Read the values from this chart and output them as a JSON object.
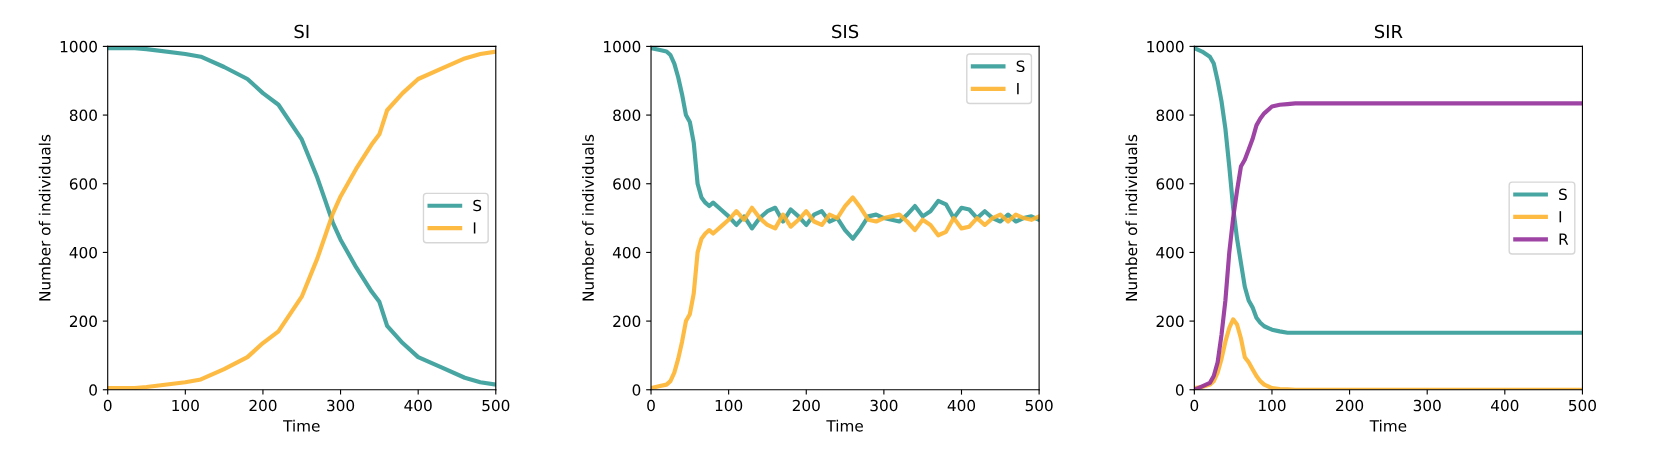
{
  "chart_data": [
    {
      "type": "line",
      "title": "SI",
      "xlabel": "Time",
      "ylabel": "Number of individuals",
      "xlim": [
        0,
        500
      ],
      "ylim": [
        0,
        1000
      ],
      "xticks": [
        0,
        100,
        200,
        300,
        400,
        500
      ],
      "yticks": [
        0,
        200,
        400,
        600,
        800,
        1000
      ],
      "legend": "right",
      "grid": false,
      "marker": "none",
      "line_style": "solid",
      "x": [
        0,
        35,
        50,
        100,
        120,
        150,
        180,
        200,
        220,
        250,
        270,
        280,
        290,
        300,
        320,
        340,
        350,
        360,
        380,
        400,
        430,
        460,
        480,
        500
      ],
      "series": [
        {
          "name": "S",
          "color": "#339b98",
          "values": [
            995,
            995,
            992,
            978,
            970,
            940,
            905,
            864,
            830,
            729,
            618,
            553,
            487,
            437,
            357,
            286,
            256,
            186,
            136,
            95,
            65,
            35,
            22,
            15
          ]
        },
        {
          "name": "I",
          "color": "#fdb42f",
          "values": [
            5,
            5,
            8,
            22,
            30,
            60,
            95,
            136,
            170,
            271,
            382,
            447,
            513,
            563,
            643,
            714,
            744,
            814,
            864,
            905,
            935,
            965,
            978,
            985
          ]
        }
      ]
    },
    {
      "type": "line",
      "title": "SIS",
      "xlabel": "Time",
      "ylabel": "Number of individuals",
      "xlim": [
        0,
        500
      ],
      "ylim": [
        0,
        1000
      ],
      "xticks": [
        0,
        100,
        200,
        300,
        400,
        500
      ],
      "yticks": [
        0,
        200,
        400,
        600,
        800,
        1000
      ],
      "legend": "top right",
      "grid": false,
      "marker": "none",
      "line_style": "solid",
      "x": [
        0,
        10,
        20,
        25,
        30,
        35,
        40,
        45,
        50,
        55,
        60,
        65,
        70,
        75,
        80,
        90,
        100,
        110,
        120,
        130,
        140,
        150,
        160,
        170,
        180,
        190,
        200,
        210,
        220,
        230,
        240,
        250,
        260,
        270,
        280,
        290,
        300,
        310,
        320,
        330,
        340,
        350,
        360,
        370,
        380,
        390,
        400,
        410,
        420,
        430,
        440,
        450,
        460,
        470,
        480,
        490,
        500
      ],
      "series": [
        {
          "name": "S",
          "color": "#339b98",
          "values": [
            995,
            990,
            985,
            975,
            950,
            910,
            860,
            800,
            780,
            720,
            600,
            560,
            545,
            535,
            545,
            525,
            505,
            480,
            505,
            470,
            500,
            520,
            530,
            490,
            525,
            505,
            480,
            510,
            520,
            490,
            500,
            465,
            440,
            470,
            505,
            510,
            500,
            495,
            490,
            510,
            535,
            505,
            520,
            550,
            540,
            500,
            530,
            525,
            500,
            520,
            500,
            490,
            510,
            490,
            500,
            505,
            495
          ]
        },
        {
          "name": "I",
          "color": "#fdb42f",
          "values": [
            5,
            10,
            15,
            25,
            50,
            90,
            140,
            200,
            220,
            280,
            400,
            440,
            455,
            465,
            455,
            475,
            495,
            520,
            495,
            530,
            500,
            480,
            470,
            510,
            475,
            495,
            520,
            490,
            480,
            510,
            500,
            535,
            560,
            530,
            495,
            490,
            500,
            505,
            510,
            490,
            465,
            495,
            480,
            450,
            460,
            500,
            470,
            475,
            500,
            480,
            500,
            510,
            490,
            510,
            500,
            495,
            505
          ]
        }
      ]
    },
    {
      "type": "line",
      "title": "SIR",
      "xlabel": "Time",
      "ylabel": "Number of individuals",
      "xlim": [
        0,
        500
      ],
      "ylim": [
        0,
        1000
      ],
      "xticks": [
        0,
        100,
        200,
        300,
        400,
        500
      ],
      "yticks": [
        0,
        200,
        400,
        600,
        800,
        1000
      ],
      "legend": "right",
      "grid": false,
      "marker": "none",
      "line_style": "solid",
      "x": [
        0,
        10,
        20,
        25,
        30,
        35,
        40,
        45,
        50,
        55,
        60,
        65,
        70,
        75,
        80,
        85,
        90,
        100,
        110,
        120,
        130,
        150,
        200,
        300,
        400,
        500
      ],
      "series": [
        {
          "name": "S",
          "color": "#339b98",
          "values": [
            995,
            985,
            970,
            950,
            900,
            840,
            760,
            650,
            530,
            440,
            370,
            300,
            260,
            240,
            210,
            195,
            185,
            175,
            170,
            166,
            166,
            166,
            166,
            166,
            166,
            166
          ]
        },
        {
          "name": "I",
          "color": "#fdb42f",
          "values": [
            5,
            8,
            15,
            25,
            50,
            90,
            140,
            180,
            205,
            190,
            150,
            95,
            80,
            60,
            40,
            25,
            15,
            5,
            2,
            1,
            0,
            0,
            0,
            0,
            0,
            0
          ]
        },
        {
          "name": "R",
          "color": "#94309a",
          "values": [
            0,
            10,
            20,
            40,
            80,
            160,
            260,
            400,
            500,
            580,
            650,
            670,
            700,
            730,
            770,
            790,
            805,
            825,
            830,
            832,
            834,
            834,
            834,
            834,
            834,
            834
          ]
        }
      ]
    }
  ]
}
